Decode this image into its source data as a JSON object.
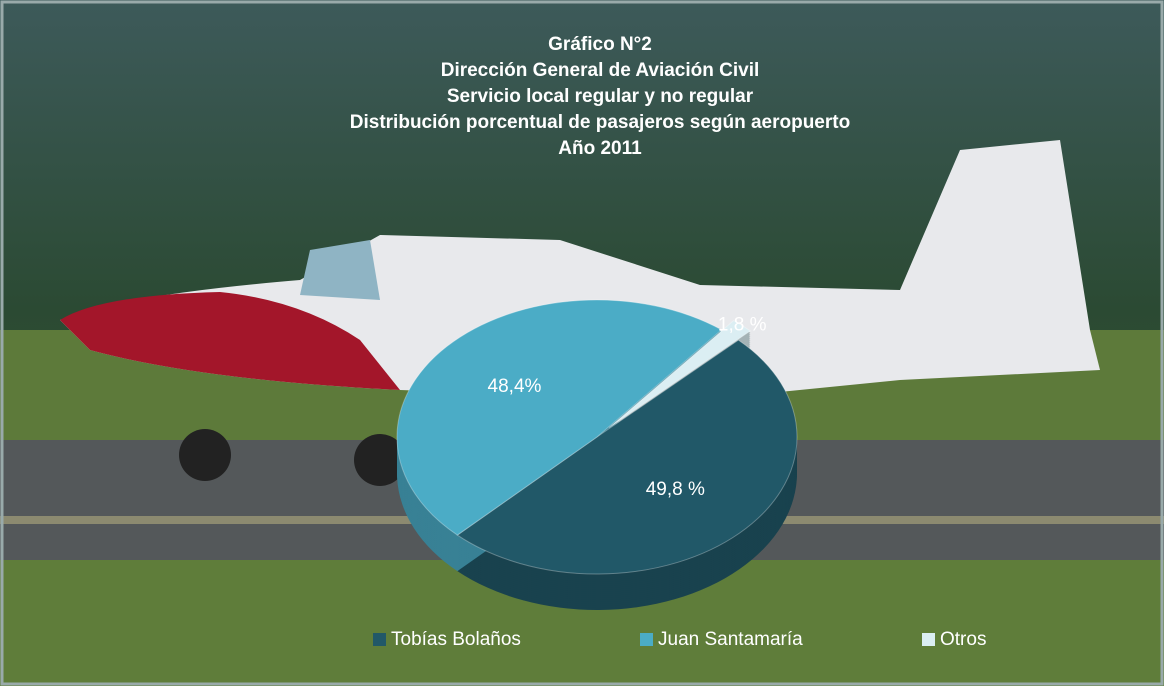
{
  "chart_data": {
    "type": "pie",
    "title": [
      "Gráfico N°2",
      "Dirección General de Aviación Civil",
      "Servicio local  regular y no regular",
      "Distribución porcentual  de pasajeros  según aeropuerto",
      "Año 2011"
    ],
    "categories": [
      "Tobías Bolaños",
      "Juan Santamaría",
      "Otros"
    ],
    "values": [
      49.8,
      48.4,
      1.8
    ],
    "value_labels": [
      "49,8 %",
      "48,4%",
      "1,8 %"
    ],
    "colors": [
      "#215868",
      "#4bacc6",
      "#dbeef3"
    ],
    "legend": "bottom"
  }
}
